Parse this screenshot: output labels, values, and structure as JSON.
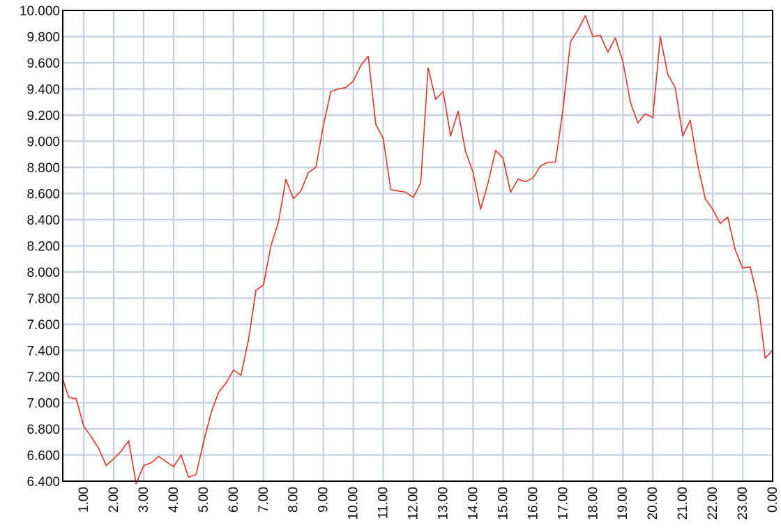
{
  "chart_data": {
    "type": "line",
    "title": "",
    "xlabel": "",
    "ylabel": "",
    "grid": true,
    "colors": {
      "series": "#e8322b",
      "grid": "#c6cfdd",
      "frame": "#000000"
    },
    "ylim": [
      6400,
      10000
    ],
    "xlim": [
      0.3,
      24
    ],
    "y_ticks": [
      {
        "value": 6400,
        "label": "6.400"
      },
      {
        "value": 6600,
        "label": "6.600"
      },
      {
        "value": 6800,
        "label": "6.800"
      },
      {
        "value": 7000,
        "label": "7.000"
      },
      {
        "value": 7200,
        "label": "7.200"
      },
      {
        "value": 7400,
        "label": "7.400"
      },
      {
        "value": 7600,
        "label": "7.600"
      },
      {
        "value": 7800,
        "label": "7.800"
      },
      {
        "value": 8000,
        "label": "8.000"
      },
      {
        "value": 8200,
        "label": "8.200"
      },
      {
        "value": 8400,
        "label": "8.400"
      },
      {
        "value": 8600,
        "label": "8.600"
      },
      {
        "value": 8800,
        "label": "8.800"
      },
      {
        "value": 9000,
        "label": "9.000"
      },
      {
        "value": 9200,
        "label": "9.200"
      },
      {
        "value": 9400,
        "label": "9.400"
      },
      {
        "value": 9600,
        "label": "9.600"
      },
      {
        "value": 9800,
        "label": "9.800"
      },
      {
        "value": 10000,
        "label": "10.000"
      }
    ],
    "x_ticks": [
      {
        "value": 1,
        "label": "1.00"
      },
      {
        "value": 2,
        "label": "2.00"
      },
      {
        "value": 3,
        "label": "3.00"
      },
      {
        "value": 4,
        "label": "4.00"
      },
      {
        "value": 5,
        "label": "5.00"
      },
      {
        "value": 6,
        "label": "6.00"
      },
      {
        "value": 7,
        "label": "7.00"
      },
      {
        "value": 8,
        "label": "8.00"
      },
      {
        "value": 9,
        "label": "9.00"
      },
      {
        "value": 10,
        "label": "10.00"
      },
      {
        "value": 11,
        "label": "11.00"
      },
      {
        "value": 12,
        "label": "12.00"
      },
      {
        "value": 13,
        "label": "13.00"
      },
      {
        "value": 14,
        "label": "14.00"
      },
      {
        "value": 15,
        "label": "15.00"
      },
      {
        "value": 16,
        "label": "16.00"
      },
      {
        "value": 17,
        "label": "17.00"
      },
      {
        "value": 18,
        "label": "18.00"
      },
      {
        "value": 19,
        "label": "19.00"
      },
      {
        "value": 20,
        "label": "20.00"
      },
      {
        "value": 21,
        "label": "21.00"
      },
      {
        "value": 22,
        "label": "22.00"
      },
      {
        "value": 23,
        "label": "23.00"
      },
      {
        "value": 24,
        "label": "0.00"
      }
    ],
    "series": [
      {
        "points": [
          [
            0.3,
            7180
          ],
          [
            0.5,
            7040
          ],
          [
            0.75,
            7030
          ],
          [
            1.0,
            6820
          ],
          [
            1.25,
            6740
          ],
          [
            1.5,
            6650
          ],
          [
            1.75,
            6520
          ],
          [
            2.0,
            6570
          ],
          [
            2.25,
            6630
          ],
          [
            2.5,
            6710
          ],
          [
            2.75,
            6380
          ],
          [
            3.0,
            6520
          ],
          [
            3.25,
            6540
          ],
          [
            3.5,
            6590
          ],
          [
            3.75,
            6550
          ],
          [
            4.0,
            6510
          ],
          [
            4.25,
            6600
          ],
          [
            4.5,
            6430
          ],
          [
            4.75,
            6450
          ],
          [
            5.0,
            6700
          ],
          [
            5.25,
            6920
          ],
          [
            5.5,
            7080
          ],
          [
            5.75,
            7150
          ],
          [
            6.0,
            7250
          ],
          [
            6.25,
            7210
          ],
          [
            6.5,
            7480
          ],
          [
            6.75,
            7860
          ],
          [
            7.0,
            7900
          ],
          [
            7.25,
            8200
          ],
          [
            7.5,
            8380
          ],
          [
            7.75,
            8710
          ],
          [
            8.0,
            8560
          ],
          [
            8.25,
            8620
          ],
          [
            8.5,
            8760
          ],
          [
            8.75,
            8800
          ],
          [
            9.0,
            9120
          ],
          [
            9.25,
            9380
          ],
          [
            9.5,
            9400
          ],
          [
            9.75,
            9410
          ],
          [
            10.0,
            9460
          ],
          [
            10.25,
            9580
          ],
          [
            10.5,
            9650
          ],
          [
            10.75,
            9130
          ],
          [
            11.0,
            9020
          ],
          [
            11.25,
            8630
          ],
          [
            11.5,
            8620
          ],
          [
            11.75,
            8610
          ],
          [
            12.0,
            8570
          ],
          [
            12.25,
            8680
          ],
          [
            12.5,
            9560
          ],
          [
            12.75,
            9320
          ],
          [
            13.0,
            9380
          ],
          [
            13.25,
            9040
          ],
          [
            13.5,
            9230
          ],
          [
            13.75,
            8920
          ],
          [
            14.0,
            8760
          ],
          [
            14.25,
            8480
          ],
          [
            14.5,
            8680
          ],
          [
            14.75,
            8930
          ],
          [
            15.0,
            8870
          ],
          [
            15.25,
            8610
          ],
          [
            15.5,
            8710
          ],
          [
            15.75,
            8690
          ],
          [
            16.0,
            8720
          ],
          [
            16.25,
            8810
          ],
          [
            16.5,
            8840
          ],
          [
            16.75,
            8840
          ],
          [
            17.0,
            9240
          ],
          [
            17.25,
            9760
          ],
          [
            17.5,
            9850
          ],
          [
            17.75,
            9960
          ],
          [
            18.0,
            9800
          ],
          [
            18.25,
            9810
          ],
          [
            18.5,
            9680
          ],
          [
            18.75,
            9790
          ],
          [
            19.0,
            9610
          ],
          [
            19.25,
            9300
          ],
          [
            19.5,
            9140
          ],
          [
            19.75,
            9210
          ],
          [
            20.0,
            9180
          ],
          [
            20.25,
            9800
          ],
          [
            20.5,
            9510
          ],
          [
            20.75,
            9410
          ],
          [
            21.0,
            9040
          ],
          [
            21.25,
            9160
          ],
          [
            21.5,
            8820
          ],
          [
            21.75,
            8560
          ],
          [
            22.0,
            8480
          ],
          [
            22.25,
            8370
          ],
          [
            22.5,
            8420
          ],
          [
            22.75,
            8170
          ],
          [
            23.0,
            8030
          ],
          [
            23.25,
            8040
          ],
          [
            23.5,
            7800
          ],
          [
            23.75,
            7340
          ],
          [
            24.0,
            7400
          ]
        ]
      }
    ]
  }
}
